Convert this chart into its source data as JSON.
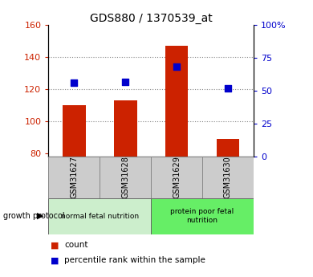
{
  "title": "GDS880 / 1370539_at",
  "categories": [
    "GSM31627",
    "GSM31628",
    "GSM31629",
    "GSM31630"
  ],
  "bar_values": [
    110,
    113,
    147,
    89
  ],
  "percentile_values": [
    56,
    57,
    68,
    52
  ],
  "bar_color": "#cc2200",
  "dot_color": "#0000cc",
  "ylim_left": [
    78,
    160
  ],
  "ylim_right": [
    0,
    100
  ],
  "yticks_left": [
    80,
    100,
    120,
    140,
    160
  ],
  "yticks_right": [
    0,
    25,
    50,
    75,
    100
  ],
  "ytick_labels_right": [
    "0",
    "25",
    "50",
    "75",
    "100%"
  ],
  "group_labels": [
    "normal fetal nutrition",
    "protein poor fetal\nnutrition"
  ],
  "group_ranges": [
    [
      0,
      2
    ],
    [
      2,
      4
    ]
  ],
  "group_colors": [
    "#cceecc",
    "#66ee66"
  ],
  "growth_protocol_label": "growth protocol",
  "legend_items": [
    "count",
    "percentile rank within the sample"
  ],
  "background_color": "#ffffff",
  "plot_bg_color": "#ffffff",
  "grid_color": "#888888",
  "bar_width": 0.45,
  "ylabel_left_color": "#cc2200",
  "ylabel_right_color": "#0000cc"
}
